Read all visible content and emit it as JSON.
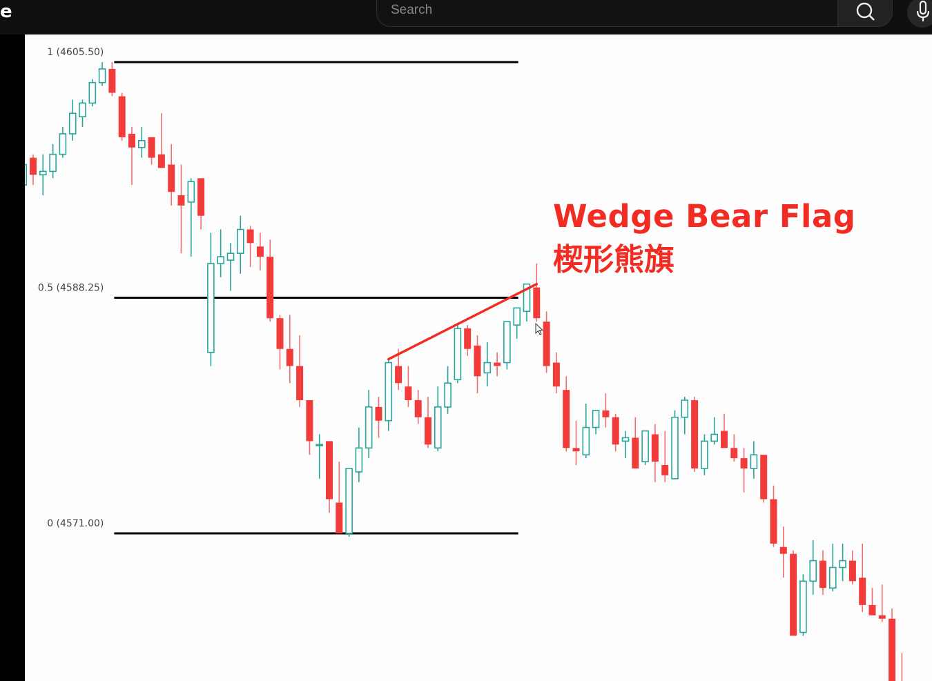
{
  "header": {
    "logo_fragment": "e",
    "search": {
      "placeholder": "Search",
      "value": ""
    },
    "icons": {
      "search": "search-icon",
      "mic": "microphone-icon"
    }
  },
  "annotation": {
    "title": "Wedge Bear Flag",
    "subtitle": "楔形熊旗",
    "color": "#f22c22"
  },
  "chart_data": {
    "type": "candlestick",
    "title": "",
    "xlabel": "",
    "ylabel": "",
    "ylim": [
      4558.5,
      4608.5
    ],
    "grid": false,
    "colors": {
      "up": "#26a69a",
      "down": "#f23c3c",
      "fib_line": "#000000",
      "trendline": "#f22c22"
    },
    "ohlc": [
      [
        4596.5,
        4598.25,
        4596.25,
        4598
      ],
      [
        4598.5,
        4598.75,
        4596.5,
        4597.25
      ],
      [
        4597.25,
        4598.75,
        4595.75,
        4597.5
      ],
      [
        4597.5,
        4599.5,
        4597,
        4598.75
      ],
      [
        4598.75,
        4600.75,
        4598.5,
        4600.25
      ],
      [
        4600.25,
        4602.75,
        4599.75,
        4601.75
      ],
      [
        4601.5,
        4602.75,
        4600.75,
        4602.5
      ],
      [
        4602.5,
        4604.25,
        4602.25,
        4604
      ],
      [
        4604,
        4605.5,
        4603.75,
        4605
      ],
      [
        4605,
        4605.5,
        4603,
        4603.25
      ],
      [
        4603,
        4603.25,
        4599.75,
        4600
      ],
      [
        4600.25,
        4600.75,
        4596.5,
        4599.25
      ],
      [
        4599.25,
        4600.75,
        4598.5,
        4599.75
      ],
      [
        4600,
        4600,
        4598,
        4598.5
      ],
      [
        4598.75,
        4601.75,
        4597.75,
        4597.75
      ],
      [
        4598,
        4599.5,
        4595,
        4596
      ],
      [
        4595.75,
        4598,
        4591.5,
        4595
      ],
      [
        4595.25,
        4597,
        4591.25,
        4596.75
      ],
      [
        4597,
        4597,
        4593.25,
        4594.25
      ],
      [
        4584.25,
        4593,
        4583.25,
        4590.75
      ],
      [
        4590.75,
        4593.25,
        4589.75,
        4591.25
      ],
      [
        4591,
        4592.25,
        4588.75,
        4591.5
      ],
      [
        4591.5,
        4594.25,
        4590,
        4593.25
      ],
      [
        4593.25,
        4593.5,
        4590.5,
        4592.25
      ],
      [
        4592,
        4593,
        4590.25,
        4591.25
      ],
      [
        4591.25,
        4592.5,
        4586.5,
        4586.75
      ],
      [
        4586.75,
        4587,
        4583,
        4584.5
      ],
      [
        4584.5,
        4587,
        4582,
        4583.25
      ],
      [
        4583.25,
        4585.5,
        4580.25,
        4580.75
      ],
      [
        4580.75,
        4580.75,
        4576.75,
        4577.75
      ],
      [
        4577.5,
        4578.25,
        4575,
        4577.5
      ],
      [
        4577.75,
        4577.75,
        4572.5,
        4573.5
      ],
      [
        4573.25,
        4576.25,
        4571,
        4571
      ],
      [
        4571,
        4575.75,
        4570.75,
        4575.75
      ],
      [
        4575.5,
        4578.75,
        4574.75,
        4577.25
      ],
      [
        4577.25,
        4581.5,
        4576.5,
        4580.25
      ],
      [
        4580.25,
        4581,
        4578,
        4579.25
      ],
      [
        4579.25,
        4583.75,
        4578.5,
        4583.5
      ],
      [
        4583.25,
        4584.5,
        4581.5,
        4582
      ],
      [
        4581.75,
        4583.25,
        4580.25,
        4580.75
      ],
      [
        4580.75,
        4581.5,
        4579,
        4579.5
      ],
      [
        4579.5,
        4581,
        4577.25,
        4577.5
      ],
      [
        4577.25,
        4581.75,
        4577,
        4580.25
      ],
      [
        4580.25,
        4583.25,
        4579.75,
        4582
      ],
      [
        4582.25,
        4586.25,
        4582,
        4586
      ],
      [
        4586,
        4586.25,
        4584,
        4584.5
      ],
      [
        4584.75,
        4585.5,
        4581.25,
        4582.5
      ],
      [
        4582.75,
        4585,
        4581.75,
        4583.5
      ],
      [
        4583.5,
        4584.25,
        4582.5,
        4583.25
      ],
      [
        4583.5,
        4586.5,
        4583,
        4586.5
      ],
      [
        4586.25,
        4587.5,
        4585.25,
        4587.5
      ],
      [
        4587.25,
        4589.25,
        4586.5,
        4589.25
      ],
      [
        4589,
        4590.75,
        4586.5,
        4586.75
      ],
      [
        4586.5,
        4587.25,
        4582.75,
        4583.25
      ],
      [
        4583.5,
        4584.25,
        4581.25,
        4581.75
      ],
      [
        4581.5,
        4582.5,
        4577,
        4577.25
      ],
      [
        4577.25,
        4579.25,
        4576,
        4577
      ],
      [
        4576.75,
        4580.5,
        4576.5,
        4578.75
      ],
      [
        4578.75,
        4580,
        4578.25,
        4580
      ],
      [
        4580,
        4581.25,
        4578.75,
        4579.5
      ],
      [
        4579.5,
        4579.75,
        4577,
        4577.5
      ],
      [
        4577.75,
        4578.5,
        4576.5,
        4578
      ],
      [
        4578,
        4579.5,
        4575.75,
        4575.75
      ],
      [
        4576.25,
        4578.5,
        4576,
        4578.5
      ],
      [
        4578.25,
        4579,
        4574.75,
        4576.25
      ],
      [
        4576,
        4578.5,
        4574.75,
        4575.25
      ],
      [
        4575,
        4580,
        4575,
        4579.5
      ],
      [
        4579.5,
        4581,
        4578.25,
        4580.75
      ],
      [
        4580.75,
        4581,
        4575.5,
        4575.75
      ],
      [
        4575.75,
        4578.25,
        4575.25,
        4577.75
      ],
      [
        4577.75,
        4579.5,
        4577.5,
        4578.25
      ],
      [
        4578.5,
        4579.75,
        4577.25,
        4577.25
      ],
      [
        4577.25,
        4578.25,
        4576.25,
        4576.5
      ],
      [
        4576.5,
        4577.25,
        4574,
        4575.75
      ],
      [
        4575.75,
        4577.75,
        4575,
        4576.75
      ],
      [
        4576.75,
        4576.75,
        4573.25,
        4573.5
      ],
      [
        4573.5,
        4574.5,
        4570,
        4570.25
      ],
      [
        4570,
        4571.5,
        4567.75,
        4569.5
      ],
      [
        4569.5,
        4569.75,
        4563.5,
        4563.5
      ],
      [
        4563.75,
        4568,
        4563.5,
        4567.5
      ],
      [
        4567.5,
        4570.5,
        4566.5,
        4569
      ],
      [
        4569,
        4569.75,
        4566.5,
        4567
      ],
      [
        4567,
        4570.25,
        4566.75,
        4568.5
      ],
      [
        4568.5,
        4570.25,
        4567.5,
        4569
      ],
      [
        4569,
        4569.75,
        4567.25,
        4567.5
      ],
      [
        4567.75,
        4570.25,
        4565.25,
        4565.75
      ],
      [
        4565.75,
        4567,
        4565,
        4565
      ],
      [
        4565,
        4567.25,
        4564.5,
        4564.75
      ],
      [
        4564.75,
        4565.5,
        4559.25,
        4559.5
      ],
      [
        4559.75,
        4562.25,
        4559,
        4559.25
      ]
    ],
    "fib_levels": [
      {
        "label": "1 (4605.50)",
        "price": 4605.5
      },
      {
        "label": "0.5 (4588.25)",
        "price": 4588.25
      },
      {
        "label": "0 (4571.00)",
        "price": 4571.0
      }
    ],
    "fib_span_candles": [
      9,
      50
    ],
    "trendline": {
      "from": {
        "candle": 37,
        "price": 4583.75
      },
      "to": {
        "candle": 52,
        "price": 4589.25
      }
    }
  }
}
